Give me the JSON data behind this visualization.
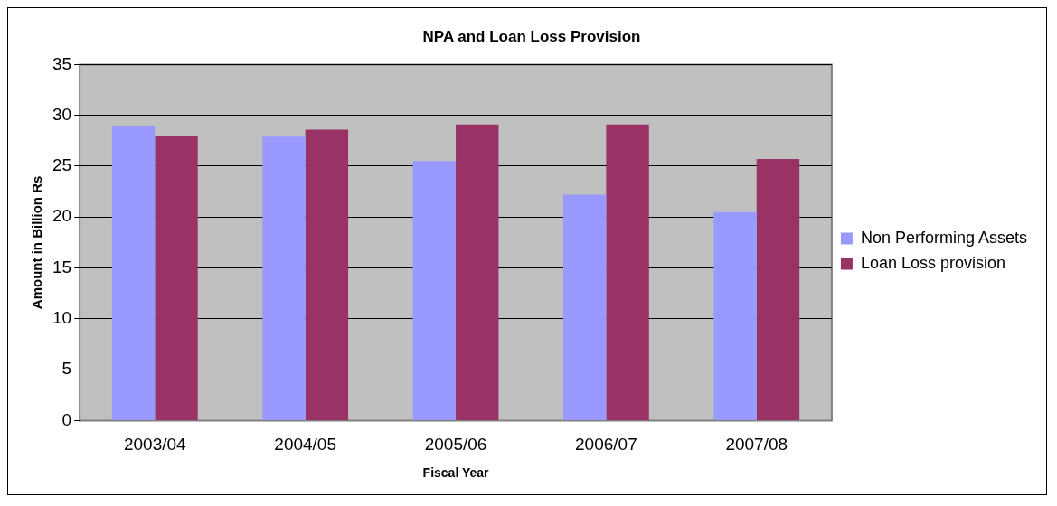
{
  "chart_data": {
    "type": "bar",
    "title": "NPA and Loan Loss Provision",
    "xlabel": "Fiscal Year",
    "ylabel": "Amount in Billion Rs",
    "categories": [
      "2003/04",
      "2004/05",
      "2005/06",
      "2006/07",
      "2007/08"
    ],
    "series": [
      {
        "name": "Non Performing Assets",
        "color": "#9999ff",
        "values": [
          29,
          27.9,
          25.5,
          22.2,
          20.5
        ]
      },
      {
        "name": "Loan Loss provision",
        "color": "#993366",
        "values": [
          28,
          28.6,
          29.1,
          29.1,
          25.7
        ]
      }
    ],
    "ylim": [
      0,
      35
    ],
    "yticks": [
      0,
      5,
      10,
      15,
      20,
      25,
      30,
      35
    ],
    "grid": "y",
    "legend": "right"
  }
}
